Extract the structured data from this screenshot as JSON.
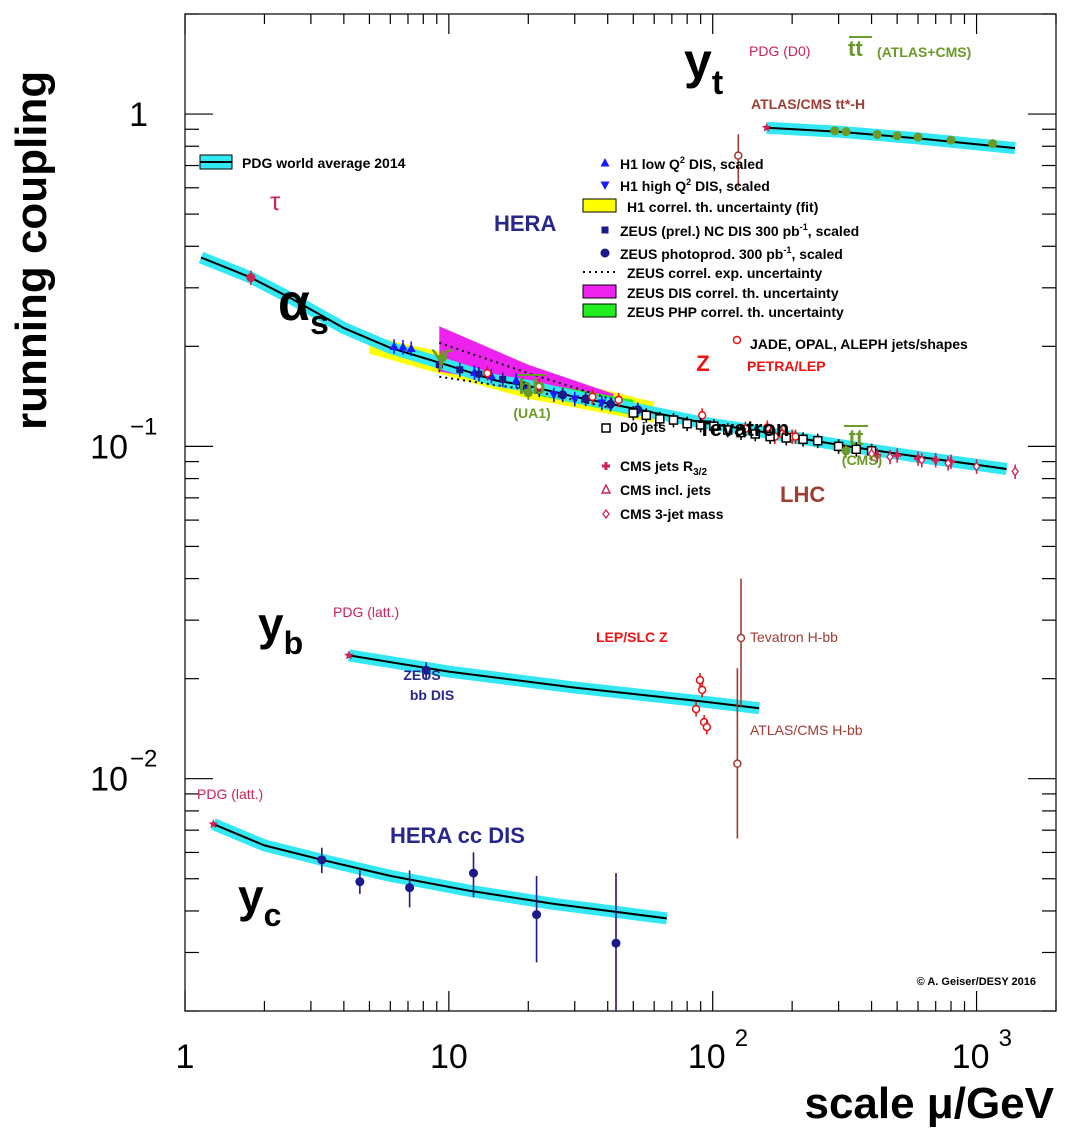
{
  "chart_data": {
    "type": "scatter",
    "log_x": true,
    "log_y": true,
    "xlim": [
      1,
      2000
    ],
    "ylim": [
      0.002,
      2
    ],
    "xlabel": "scale μ/GeV",
    "ylabel": "running coupling",
    "x_ticks": [
      "1",
      "10",
      "10",
      "10"
    ],
    "x_tick_exps": [
      "",
      "",
      "2",
      "3"
    ],
    "y_ticks": [
      "1",
      "10",
      "10"
    ],
    "y_tick_exps": [
      "",
      "−1",
      "−2"
    ],
    "copyright": "© A. Geiser/DESY 2016",
    "colors": {
      "band": "#33e8f2",
      "line": "#000000",
      "h1": "#1a1aff",
      "zeus": "#1a1a8c",
      "hera_text": "#28288c",
      "green": "#6a9a28",
      "red": "#ee1111",
      "brown": "#a03c32",
      "pink": "#cc2255",
      "yellow": "#ffff00",
      "magenta": "#ee22ee",
      "lime": "#22ee22"
    },
    "legend": {
      "pdg": "PDG world average 2014",
      "h1_low": "H1 low Q",
      "h1_low_suffix": " DIS, scaled",
      "h1_high": "H1 high Q",
      "h1_high_suffix": " DIS, scaled",
      "sup2": "2",
      "h1_band": "H1 correl. th. uncertainty (fit)",
      "zeus_nc": "ZEUS (prel.) NC DIS 300 pb",
      "zeus_nc_suffix": ", scaled",
      "zeus_ph": "ZEUS photoprod. 300 pb",
      "zeus_ph_suffix": ", scaled",
      "supm1": "-1",
      "zeus_exp": "ZEUS correl. exp. uncertainty",
      "zeus_dis": "ZEUS DIS correl. th. uncertainty",
      "zeus_php": "ZEUS PHP correl. th. uncertainty",
      "jade": "JADE, OPAL, ALEPH jets/shapes",
      "d0": "D0 jets",
      "cms_r32": "CMS jets R",
      "cms_r32_sub": "3/2",
      "cms_incl": "CMS incl. jets",
      "cms_3jet": "CMS 3-jet mass"
    },
    "labels": {
      "yt": "y",
      "yt_sub": "t",
      "yb": "y",
      "yb_sub": "b",
      "yc": "y",
      "yc_sub": "c",
      "alpha": "α",
      "alpha_sub": "s",
      "tau": "τ",
      "upsilon": "ϒ",
      "hera": "HERA",
      "bb": "bb",
      "ua1": "(UA1)",
      "z": "Z",
      "petra": "PETRA/LEP",
      "tevatron": "Tevatron",
      "tt": "tt",
      "cms_paren": "(CMS)",
      "lhc": "LHC",
      "pdg_d0": "PDG (D0)",
      "tt_top": "tt",
      "atlas_cms": "(ATLAS+CMS)",
      "atlas_tth": "ATLAS/CMS tt*-H",
      "pdg_latt_b": "PDG (latt.)",
      "zeus_bb_1": "ZEUS",
      "zeus_bb_2": "bb DIS",
      "lep_slc": "LEP/SLC Z",
      "tev_hbb": "Tevatron H-bb",
      "atlas_hbb": "ATLAS/CMS H-bb",
      "pdg_latt_c": "PDG (latt.)",
      "hera_cc": "HERA cc DIS"
    },
    "series": [
      {
        "name": "PDG world average 2014",
        "kind": "curve",
        "band": true,
        "x": [
          1.15,
          1.5,
          1.777,
          2.5,
          4,
          6,
          10,
          15,
          20,
          30,
          50,
          91.19,
          150,
          300,
          600,
          1000,
          1300
        ],
        "y": [
          0.37,
          0.34,
          0.322,
          0.28,
          0.227,
          0.198,
          0.175,
          0.158,
          0.152,
          0.141,
          0.13,
          0.118,
          0.111,
          0.101,
          0.093,
          0.088,
          0.0855
        ]
      },
      {
        "name": "y_t curve",
        "kind": "curve",
        "band": true,
        "x": [
          160,
          300,
          600,
          1400
        ],
        "y": [
          0.91,
          0.885,
          0.845,
          0.79
        ]
      },
      {
        "name": "y_b curve",
        "kind": "curve",
        "band": true,
        "x": [
          4.18,
          10,
          30,
          90,
          150
        ],
        "y": [
          0.0235,
          0.021,
          0.0188,
          0.0171,
          0.0163
        ]
      },
      {
        "name": "y_c curve",
        "kind": "curve",
        "band": true,
        "x": [
          1.28,
          2,
          3.3,
          6,
          12,
          25,
          67
        ],
        "y": [
          0.0073,
          0.0063,
          0.0057,
          0.0051,
          0.0046,
          0.0042,
          0.0038
        ]
      },
      {
        "name": "H1 low Q2 DIS, scaled",
        "marker": "tri-up",
        "color": "#1a1aff",
        "x": [
          6.2,
          6.7,
          7.2,
          12.5,
          14.5,
          18
        ],
        "y": [
          0.2,
          0.199,
          0.197,
          0.167,
          0.163,
          0.158
        ]
      },
      {
        "name": "H1 high Q2 DIS, scaled",
        "marker": "tri-down",
        "color": "#1a1aff",
        "x": [
          20,
          25,
          30,
          38
        ],
        "y": [
          0.148,
          0.143,
          0.139,
          0.135
        ]
      },
      {
        "name": "ZEUS (prel.) NC DIS 300 pb-1, scaled",
        "marker": "square",
        "color": "#1a1a8c",
        "x": [
          9.2,
          11,
          13,
          16,
          19
        ],
        "y": [
          0.176,
          0.17,
          0.165,
          0.159,
          0.153
        ]
      },
      {
        "name": "ZEUS photoprod. 300 pb-1, scaled",
        "marker": "dot",
        "color": "#1a1a8c",
        "x": [
          22,
          27,
          33,
          41,
          52
        ],
        "y": [
          0.148,
          0.143,
          0.139,
          0.134,
          0.129
        ]
      },
      {
        "name": "JADE, OPAL, ALEPH jets/shapes",
        "marker": "open-circle",
        "color": "#ee1111",
        "x": [
          14,
          22,
          35,
          44,
          91.2,
          133,
          161,
          172,
          183,
          189,
          200,
          206
        ],
        "y": [
          0.166,
          0.152,
          0.141,
          0.138,
          0.124,
          0.113,
          0.114,
          0.107,
          0.109,
          0.108,
          0.107,
          0.107
        ]
      },
      {
        "name": "D0 jets",
        "marker": "open-square",
        "color": "#000000",
        "x": [
          50,
          56,
          63,
          71,
          80,
          90,
          101,
          114,
          128,
          145,
          165,
          190,
          220,
          250,
          300,
          350,
          400
        ],
        "y": [
          0.126,
          0.124,
          0.121,
          0.12,
          0.117,
          0.116,
          0.115,
          0.112,
          0.11,
          0.109,
          0.107,
          0.106,
          0.105,
          0.104,
          0.1,
          0.098,
          0.097
        ]
      },
      {
        "name": "CMS jets R_3/2",
        "marker": "plus",
        "color": "#cc2255",
        "x": [
          420,
          500,
          600,
          700,
          800
        ],
        "y": [
          0.094,
          0.094,
          0.092,
          0.091,
          0.09
        ]
      },
      {
        "name": "CMS 3-jet mass",
        "marker": "diamond",
        "color": "#cc2255",
        "x": [
          400,
          470,
          620,
          780,
          1000,
          1400
        ],
        "y": [
          0.095,
          0.093,
          0.091,
          0.089,
          0.087,
          0.084
        ]
      },
      {
        "name": "tau",
        "marker": "dot",
        "color": "#cc2255",
        "x": [
          1.777
        ],
        "y": [
          0.322
        ]
      },
      {
        "name": "Upsilon",
        "marker": "dot",
        "color": "#6a9a28",
        "x": [
          9.46
        ],
        "y": [
          0.185
        ]
      },
      {
        "name": "bb (UA1)",
        "marker": "dot",
        "color": "#6a9a28",
        "x": [
          20
        ],
        "y": [
          0.145
        ]
      },
      {
        "name": "tt (CMS)",
        "marker": "dot",
        "color": "#6a9a28",
        "x": [
          320
        ],
        "y": [
          0.097
        ]
      },
      {
        "name": "tt (ATLAS+CMS)",
        "marker": "dot",
        "color": "#6a9a28",
        "x": [
          290,
          320,
          420,
          500,
          600,
          800,
          1150
        ],
        "y": [
          0.89,
          0.885,
          0.868,
          0.86,
          0.852,
          0.835,
          0.815
        ]
      },
      {
        "name": "PDG (D0)",
        "marker": "star",
        "color": "#cc2255",
        "x": [
          160
        ],
        "y": [
          0.91
        ]
      },
      {
        "name": "ATLAS/CMS tt*-H",
        "marker": "open-circle",
        "color": "#a03c32",
        "x": [
          125
        ],
        "y": [
          0.75
        ],
        "err": [
          0.15,
          0.12
        ]
      },
      {
        "name": "PDG (latt.) b",
        "marker": "star",
        "color": "#cc2255",
        "x": [
          4.18
        ],
        "y": [
          0.0235
        ]
      },
      {
        "name": "ZEUS bb DIS",
        "marker": "dot",
        "color": "#1a1a8c",
        "x": [
          8.2
        ],
        "y": [
          0.0212
        ],
        "err": [
          0.0012,
          0.0012
        ]
      },
      {
        "name": "LEP/SLC Z",
        "marker": "open-circle",
        "color": "#ee1111",
        "x": [
          86.5,
          89.5,
          91.2,
          92.8,
          95
        ],
        "y": [
          0.0162,
          0.0198,
          0.0185,
          0.0148,
          0.0143
        ]
      },
      {
        "name": "Tevatron H-bb",
        "marker": "open-circle",
        "color": "#a03c32",
        "x": [
          128
        ],
        "y": [
          0.0265
        ],
        "err": [
          0.01,
          0.0135
        ]
      },
      {
        "name": "ATLAS/CMS H-bb",
        "marker": "open-circle",
        "color": "#a03c32",
        "x": [
          124
        ],
        "y": [
          0.0111
        ],
        "err": [
          0.0045,
          0.0104
        ]
      },
      {
        "name": "PDG (latt.) c",
        "marker": "star",
        "color": "#cc2255",
        "x": [
          1.28
        ],
        "y": [
          0.0073
        ]
      },
      {
        "name": "HERA cc DIS",
        "marker": "dot",
        "color": "#1a1a8c",
        "x": [
          3.3,
          4.6,
          7.1,
          12.4,
          21.5,
          43
        ],
        "y": [
          0.0057,
          0.0049,
          0.0047,
          0.0052,
          0.0039,
          0.0032
        ],
        "err": [
          [
            0.0005,
            0.0005
          ],
          [
            0.0004,
            0.0004
          ],
          [
            0.0006,
            0.0006
          ],
          [
            0.0008,
            0.0008
          ],
          [
            0.0011,
            0.0012
          ],
          [
            0.0012,
            0.002
          ]
        ]
      }
    ]
  }
}
